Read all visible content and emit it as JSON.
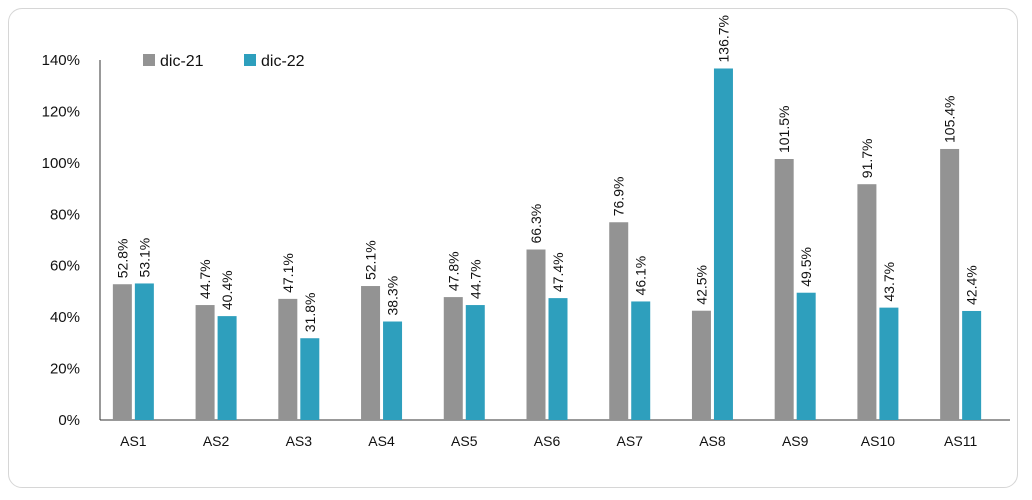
{
  "chart_data": {
    "type": "bar",
    "title": "",
    "xlabel": "",
    "ylabel": "",
    "ylim": [
      0,
      140
    ],
    "yticks": [
      "0%",
      "20%",
      "40%",
      "60%",
      "80%",
      "100%",
      "120%",
      "140%"
    ],
    "grid": false,
    "legend_position": "top-left",
    "categories": [
      "AS1",
      "AS2",
      "AS3",
      "AS4",
      "AS5",
      "AS6",
      "AS7",
      "AS8",
      "AS9",
      "AS10",
      "AS11"
    ],
    "series": [
      {
        "name": "dic-21",
        "color": "#939393",
        "values": [
          52.8,
          44.7,
          47.1,
          52.1,
          47.8,
          66.3,
          76.9,
          42.5,
          101.5,
          91.7,
          105.4
        ],
        "labels": [
          "52.8%",
          "44.7%",
          "47.1%",
          "52.1%",
          "47.8%",
          "66.3%",
          "76.9%",
          "42.5%",
          "101.5%",
          "91.7%",
          "105.4%"
        ]
      },
      {
        "name": "dic-22",
        "color": "#2e9fbd",
        "values": [
          53.1,
          40.4,
          31.8,
          38.3,
          44.7,
          47.4,
          46.1,
          136.7,
          49.5,
          43.7,
          42.4
        ],
        "labels": [
          "53.1%",
          "40.4%",
          "31.8%",
          "38.3%",
          "44.7%",
          "47.4%",
          "46.1%",
          "136.7%",
          "49.5%",
          "43.7%",
          "42.4%"
        ]
      }
    ]
  }
}
